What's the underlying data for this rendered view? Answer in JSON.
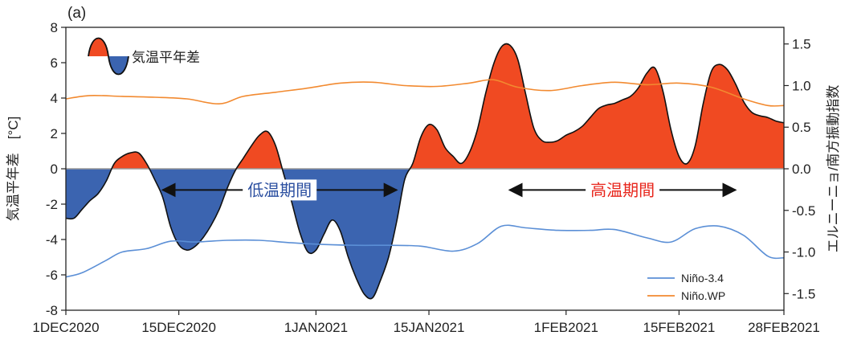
{
  "chart_data": {
    "type": "area",
    "panel_label": "(a)",
    "ylabel_left": "気温平年差　[°C]",
    "ylabel_right": "エルニーニョ/南方振動指数",
    "ylim_left": [
      -8,
      8
    ],
    "ylim_right": [
      -1.7,
      1.7
    ],
    "yticks_left": [
      8,
      6,
      4,
      2,
      0,
      -2,
      -4,
      -6,
      -8
    ],
    "yticks_right": [
      1.5,
      1.0,
      0.5,
      0.0,
      -0.5,
      -1.0,
      -1.5
    ],
    "xlim": [
      "2020-12-01",
      "2021-02-28"
    ],
    "xticks": [
      {
        "date": "2020-12-01",
        "label": "1DEC2020"
      },
      {
        "date": "2020-12-15",
        "label": "15DEC2020"
      },
      {
        "date": "2021-01-01",
        "label": "1JAN2021"
      },
      {
        "date": "2021-01-15",
        "label": "15JAN2021"
      },
      {
        "date": "2021-02-01",
        "label": "1FEB2021"
      },
      {
        "date": "2021-02-15",
        "label": "15FEB2021"
      },
      {
        "date": "2021-02-28",
        "label": "28FEB2021"
      }
    ],
    "grid": false,
    "legend_position": "lower-right",
    "inset_legend_label": "気温平年差",
    "positive_color": "#f04a22",
    "negative_color": "#3b64b0",
    "series": [
      {
        "name": "気温平年差",
        "axis": "left",
        "kind": "area",
        "x": [
          "2020-12-01",
          "2020-12-02",
          "2020-12-03",
          "2020-12-04",
          "2020-12-05",
          "2020-12-06",
          "2020-12-07",
          "2020-12-08",
          "2020-12-09",
          "2020-12-10",
          "2020-12-11",
          "2020-12-12",
          "2020-12-13",
          "2020-12-14",
          "2020-12-15",
          "2020-12-16",
          "2020-12-17",
          "2020-12-18",
          "2020-12-19",
          "2020-12-20",
          "2020-12-21",
          "2020-12-22",
          "2020-12-23",
          "2020-12-24",
          "2020-12-25",
          "2020-12-26",
          "2020-12-27",
          "2020-12-28",
          "2020-12-29",
          "2020-12-30",
          "2020-12-31",
          "2021-01-01",
          "2021-01-02",
          "2021-01-03",
          "2021-01-04",
          "2021-01-05",
          "2021-01-06",
          "2021-01-07",
          "2021-01-08",
          "2021-01-09",
          "2021-01-10",
          "2021-01-11",
          "2021-01-12",
          "2021-01-13",
          "2021-01-14",
          "2021-01-15",
          "2021-01-16",
          "2021-01-17",
          "2021-01-18",
          "2021-01-19",
          "2021-01-20",
          "2021-01-21",
          "2021-01-22",
          "2021-01-23",
          "2021-01-24",
          "2021-01-25",
          "2021-01-26",
          "2021-01-27",
          "2021-01-28",
          "2021-01-29",
          "2021-01-30",
          "2021-01-31",
          "2021-02-01",
          "2021-02-02",
          "2021-02-03",
          "2021-02-04",
          "2021-02-05",
          "2021-02-06",
          "2021-02-07",
          "2021-02-08",
          "2021-02-09",
          "2021-02-10",
          "2021-02-11",
          "2021-02-12",
          "2021-02-13",
          "2021-02-14",
          "2021-02-15",
          "2021-02-16",
          "2021-02-17",
          "2021-02-18",
          "2021-02-19",
          "2021-02-20",
          "2021-02-21",
          "2021-02-22",
          "2021-02-23",
          "2021-02-24",
          "2021-02-25",
          "2021-02-26",
          "2021-02-27",
          "2021-02-28"
        ],
        "values": [
          -2.8,
          -2.8,
          -2.3,
          -1.8,
          -1.4,
          -0.7,
          0.3,
          0.7,
          0.9,
          0.9,
          0.3,
          -0.6,
          -1.6,
          -3.3,
          -4.3,
          -4.6,
          -4.4,
          -3.9,
          -3.2,
          -2.3,
          -1.1,
          -0.1,
          0.6,
          1.3,
          1.9,
          2.1,
          1.3,
          -0.3,
          -1.9,
          -3.6,
          -4.7,
          -4.6,
          -3.7,
          -2.9,
          -3.5,
          -5.0,
          -6.2,
          -7.1,
          -7.3,
          -6.3,
          -5.0,
          -3.0,
          -0.6,
          0.3,
          1.8,
          2.5,
          2.2,
          1.2,
          0.7,
          0.3,
          0.9,
          2.2,
          4.2,
          5.9,
          6.9,
          7.0,
          6.2,
          4.2,
          2.3,
          1.6,
          1.5,
          1.6,
          1.9,
          2.1,
          2.4,
          2.9,
          3.4,
          3.6,
          3.7,
          3.9,
          4.1,
          4.6,
          5.4,
          5.7,
          4.4,
          2.2,
          0.7,
          0.3,
          1.3,
          3.7,
          5.5,
          5.9,
          5.6,
          4.8,
          3.8,
          3.2,
          3.0,
          2.9,
          2.7,
          2.6
        ]
      },
      {
        "name": "Niño-3.4",
        "axis": "right",
        "kind": "line",
        "color": "#5b8fd6",
        "x": [
          "2020-12-01",
          "2020-12-03",
          "2020-12-06",
          "2020-12-08",
          "2020-12-11",
          "2020-12-14",
          "2020-12-17",
          "2020-12-21",
          "2020-12-25",
          "2020-12-29",
          "2021-01-02",
          "2021-01-06",
          "2021-01-10",
          "2021-01-14",
          "2021-01-18",
          "2021-01-21",
          "2021-01-24",
          "2021-01-27",
          "2021-01-31",
          "2021-02-04",
          "2021-02-07",
          "2021-02-11",
          "2021-02-14",
          "2021-02-17",
          "2021-02-20",
          "2021-02-23",
          "2021-02-26",
          "2021-02-28"
        ],
        "values": [
          -1.3,
          -1.25,
          -1.1,
          -1.0,
          -0.96,
          -0.87,
          -0.88,
          -0.86,
          -0.86,
          -0.89,
          -0.91,
          -0.92,
          -0.92,
          -0.93,
          -0.99,
          -0.9,
          -0.69,
          -0.71,
          -0.74,
          -0.74,
          -0.73,
          -0.83,
          -0.88,
          -0.72,
          -0.69,
          -0.8,
          -1.05,
          -1.07
        ]
      },
      {
        "name": "Niño.WP",
        "axis": "right",
        "kind": "line",
        "color": "#f28a30",
        "x": [
          "2020-12-01",
          "2020-12-04",
          "2020-12-08",
          "2020-12-12",
          "2020-12-16",
          "2020-12-20",
          "2020-12-23",
          "2020-12-27",
          "2020-12-31",
          "2021-01-04",
          "2021-01-08",
          "2021-01-12",
          "2021-01-16",
          "2021-01-20",
          "2021-01-23",
          "2021-01-26",
          "2021-01-30",
          "2021-02-03",
          "2021-02-07",
          "2021-02-11",
          "2021-02-15",
          "2021-02-19",
          "2021-02-23",
          "2021-02-26",
          "2021-02-28"
        ],
        "values": [
          0.84,
          0.88,
          0.87,
          0.86,
          0.84,
          0.78,
          0.87,
          0.92,
          0.97,
          1.03,
          1.04,
          1.0,
          0.99,
          1.03,
          1.07,
          0.98,
          0.94,
          1.0,
          1.04,
          1.01,
          1.03,
          0.98,
          0.84,
          0.76,
          0.76
        ]
      }
    ],
    "annotations": [
      {
        "text": "低温期間",
        "from": "2020-12-13",
        "to": "2021-01-11",
        "y": -1.2,
        "color": "#2b4fa0"
      },
      {
        "text": "高温期間",
        "from": "2021-01-25",
        "to": "2021-02-22",
        "y": -1.2,
        "color": "#e8261c"
      }
    ]
  }
}
